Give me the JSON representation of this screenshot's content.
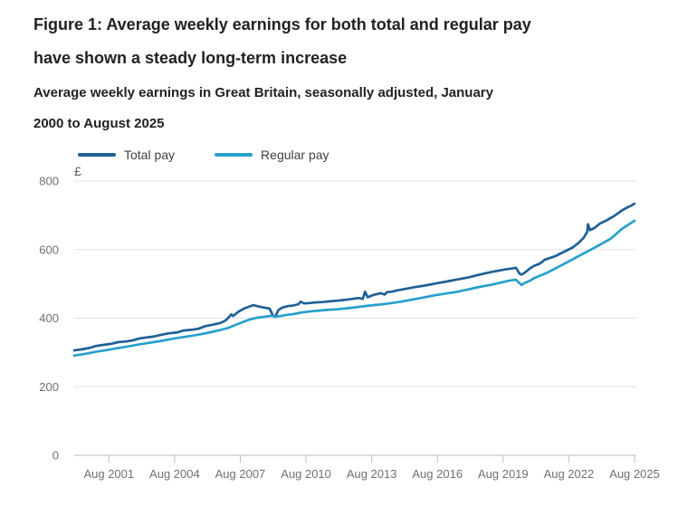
{
  "figure": {
    "title_lines": [
      "Figure 1: Average weekly earnings for both total and regular pay",
      "have shown a steady long-term increase"
    ],
    "subtitle_lines": [
      "Average weekly earnings in Great Britain, seasonally adjusted, January",
      "2000 to August 2025"
    ]
  },
  "chart_data": {
    "type": "line",
    "title": "Figure 1: Average weekly earnings for both total and regular pay have shown a steady long-term increase",
    "subtitle": "Average weekly earnings in Great Britain, seasonally adjusted, January 2000 to August 2025",
    "legend_position": "top",
    "grid": "horizontal",
    "y_axis": {
      "unit": "£",
      "ticks": [
        0,
        200,
        400,
        600,
        800
      ],
      "range": [
        0,
        800
      ]
    },
    "x_axis": {
      "range_years": [
        2000.0,
        2025.583
      ],
      "ticks": [
        {
          "label": "Aug 2001",
          "year": 2001.583
        },
        {
          "label": "Aug 2004",
          "year": 2004.583
        },
        {
          "label": "Aug 2007",
          "year": 2007.583
        },
        {
          "label": "Aug 2010",
          "year": 2010.583
        },
        {
          "label": "Aug 2013",
          "year": 2013.583
        },
        {
          "label": "Aug 2016",
          "year": 2016.583
        },
        {
          "label": "Aug 2019",
          "year": 2019.583
        },
        {
          "label": "Aug 2022",
          "year": 2022.583
        },
        {
          "label": "Aug 2025",
          "year": 2025.583
        }
      ]
    },
    "series": [
      {
        "name": "Total pay",
        "color": "#206095",
        "points": [
          [
            2000.0,
            306
          ],
          [
            2000.33,
            309
          ],
          [
            2000.67,
            313
          ],
          [
            2001.0,
            319
          ],
          [
            2001.33,
            322
          ],
          [
            2001.67,
            325
          ],
          [
            2002.0,
            330
          ],
          [
            2002.33,
            332
          ],
          [
            2002.67,
            335
          ],
          [
            2003.0,
            341
          ],
          [
            2003.33,
            344
          ],
          [
            2003.67,
            347
          ],
          [
            2004.0,
            352
          ],
          [
            2004.33,
            356
          ],
          [
            2004.67,
            358
          ],
          [
            2005.0,
            364
          ],
          [
            2005.33,
            366
          ],
          [
            2005.67,
            369
          ],
          [
            2006.0,
            377
          ],
          [
            2006.33,
            381
          ],
          [
            2006.67,
            386
          ],
          [
            2006.9,
            393
          ],
          [
            2007.0,
            399
          ],
          [
            2007.17,
            411
          ],
          [
            2007.25,
            406
          ],
          [
            2007.5,
            419
          ],
          [
            2007.75,
            428
          ],
          [
            2008.0,
            434
          ],
          [
            2008.17,
            438
          ],
          [
            2008.42,
            434
          ],
          [
            2008.67,
            431
          ],
          [
            2008.92,
            428
          ],
          [
            2009.08,
            407
          ],
          [
            2009.17,
            404
          ],
          [
            2009.33,
            424
          ],
          [
            2009.5,
            431
          ],
          [
            2009.75,
            435
          ],
          [
            2010.0,
            437
          ],
          [
            2010.25,
            441
          ],
          [
            2010.33,
            448
          ],
          [
            2010.5,
            443
          ],
          [
            2010.75,
            444
          ],
          [
            2011.0,
            446
          ],
          [
            2011.33,
            447
          ],
          [
            2011.67,
            449
          ],
          [
            2012.0,
            451
          ],
          [
            2012.33,
            453
          ],
          [
            2012.67,
            456
          ],
          [
            2013.0,
            459
          ],
          [
            2013.17,
            456
          ],
          [
            2013.28,
            477
          ],
          [
            2013.4,
            461
          ],
          [
            2013.67,
            468
          ],
          [
            2014.0,
            473
          ],
          [
            2014.17,
            469
          ],
          [
            2014.28,
            476
          ],
          [
            2014.5,
            477
          ],
          [
            2014.75,
            481
          ],
          [
            2015.0,
            484
          ],
          [
            2015.5,
            490
          ],
          [
            2016.0,
            495
          ],
          [
            2016.5,
            501
          ],
          [
            2017.0,
            507
          ],
          [
            2017.5,
            513
          ],
          [
            2018.0,
            519
          ],
          [
            2018.5,
            527
          ],
          [
            2019.0,
            534
          ],
          [
            2019.33,
            538
          ],
          [
            2019.67,
            542
          ],
          [
            2020.0,
            545
          ],
          [
            2020.17,
            547
          ],
          [
            2020.33,
            530
          ],
          [
            2020.42,
            527
          ],
          [
            2020.58,
            533
          ],
          [
            2020.83,
            546
          ],
          [
            2021.0,
            553
          ],
          [
            2021.25,
            559
          ],
          [
            2021.5,
            571
          ],
          [
            2021.75,
            576
          ],
          [
            2022.0,
            582
          ],
          [
            2022.25,
            590
          ],
          [
            2022.5,
            598
          ],
          [
            2022.75,
            606
          ],
          [
            2023.0,
            618
          ],
          [
            2023.25,
            634
          ],
          [
            2023.42,
            652
          ],
          [
            2023.46,
            674
          ],
          [
            2023.55,
            657
          ],
          [
            2023.75,
            663
          ],
          [
            2024.0,
            676
          ],
          [
            2024.33,
            686
          ],
          [
            2024.67,
            699
          ],
          [
            2025.0,
            714
          ],
          [
            2025.25,
            723
          ],
          [
            2025.42,
            728
          ],
          [
            2025.58,
            734
          ]
        ]
      },
      {
        "name": "Regular pay",
        "color": "#27A0CC",
        "points": [
          [
            2000.0,
            291
          ],
          [
            2000.5,
            296
          ],
          [
            2001.0,
            302
          ],
          [
            2001.5,
            307
          ],
          [
            2002.0,
            313
          ],
          [
            2002.5,
            318
          ],
          [
            2003.0,
            324
          ],
          [
            2003.5,
            329
          ],
          [
            2004.0,
            334
          ],
          [
            2004.5,
            340
          ],
          [
            2005.0,
            345
          ],
          [
            2005.5,
            350
          ],
          [
            2006.0,
            356
          ],
          [
            2006.5,
            363
          ],
          [
            2007.0,
            371
          ],
          [
            2007.5,
            384
          ],
          [
            2008.0,
            396
          ],
          [
            2008.33,
            401
          ],
          [
            2008.67,
            404
          ],
          [
            2009.0,
            407
          ],
          [
            2009.17,
            404
          ],
          [
            2009.5,
            407
          ],
          [
            2009.75,
            410
          ],
          [
            2010.0,
            412
          ],
          [
            2010.33,
            416
          ],
          [
            2010.67,
            419
          ],
          [
            2011.0,
            421
          ],
          [
            2011.5,
            424
          ],
          [
            2012.0,
            426
          ],
          [
            2012.5,
            429
          ],
          [
            2013.0,
            433
          ],
          [
            2013.5,
            437
          ],
          [
            2014.0,
            440
          ],
          [
            2014.5,
            444
          ],
          [
            2015.0,
            449
          ],
          [
            2015.5,
            455
          ],
          [
            2016.0,
            461
          ],
          [
            2016.5,
            467
          ],
          [
            2017.0,
            472
          ],
          [
            2017.5,
            477
          ],
          [
            2018.0,
            484
          ],
          [
            2018.5,
            491
          ],
          [
            2019.0,
            497
          ],
          [
            2019.5,
            504
          ],
          [
            2019.83,
            509
          ],
          [
            2020.0,
            511
          ],
          [
            2020.17,
            512
          ],
          [
            2020.42,
            497
          ],
          [
            2020.58,
            503
          ],
          [
            2020.83,
            510
          ],
          [
            2021.0,
            517
          ],
          [
            2021.5,
            530
          ],
          [
            2022.0,
            546
          ],
          [
            2022.5,
            563
          ],
          [
            2023.0,
            580
          ],
          [
            2023.5,
            597
          ],
          [
            2024.0,
            614
          ],
          [
            2024.5,
            632
          ],
          [
            2025.0,
            660
          ],
          [
            2025.33,
            674
          ],
          [
            2025.58,
            684
          ]
        ]
      }
    ]
  }
}
